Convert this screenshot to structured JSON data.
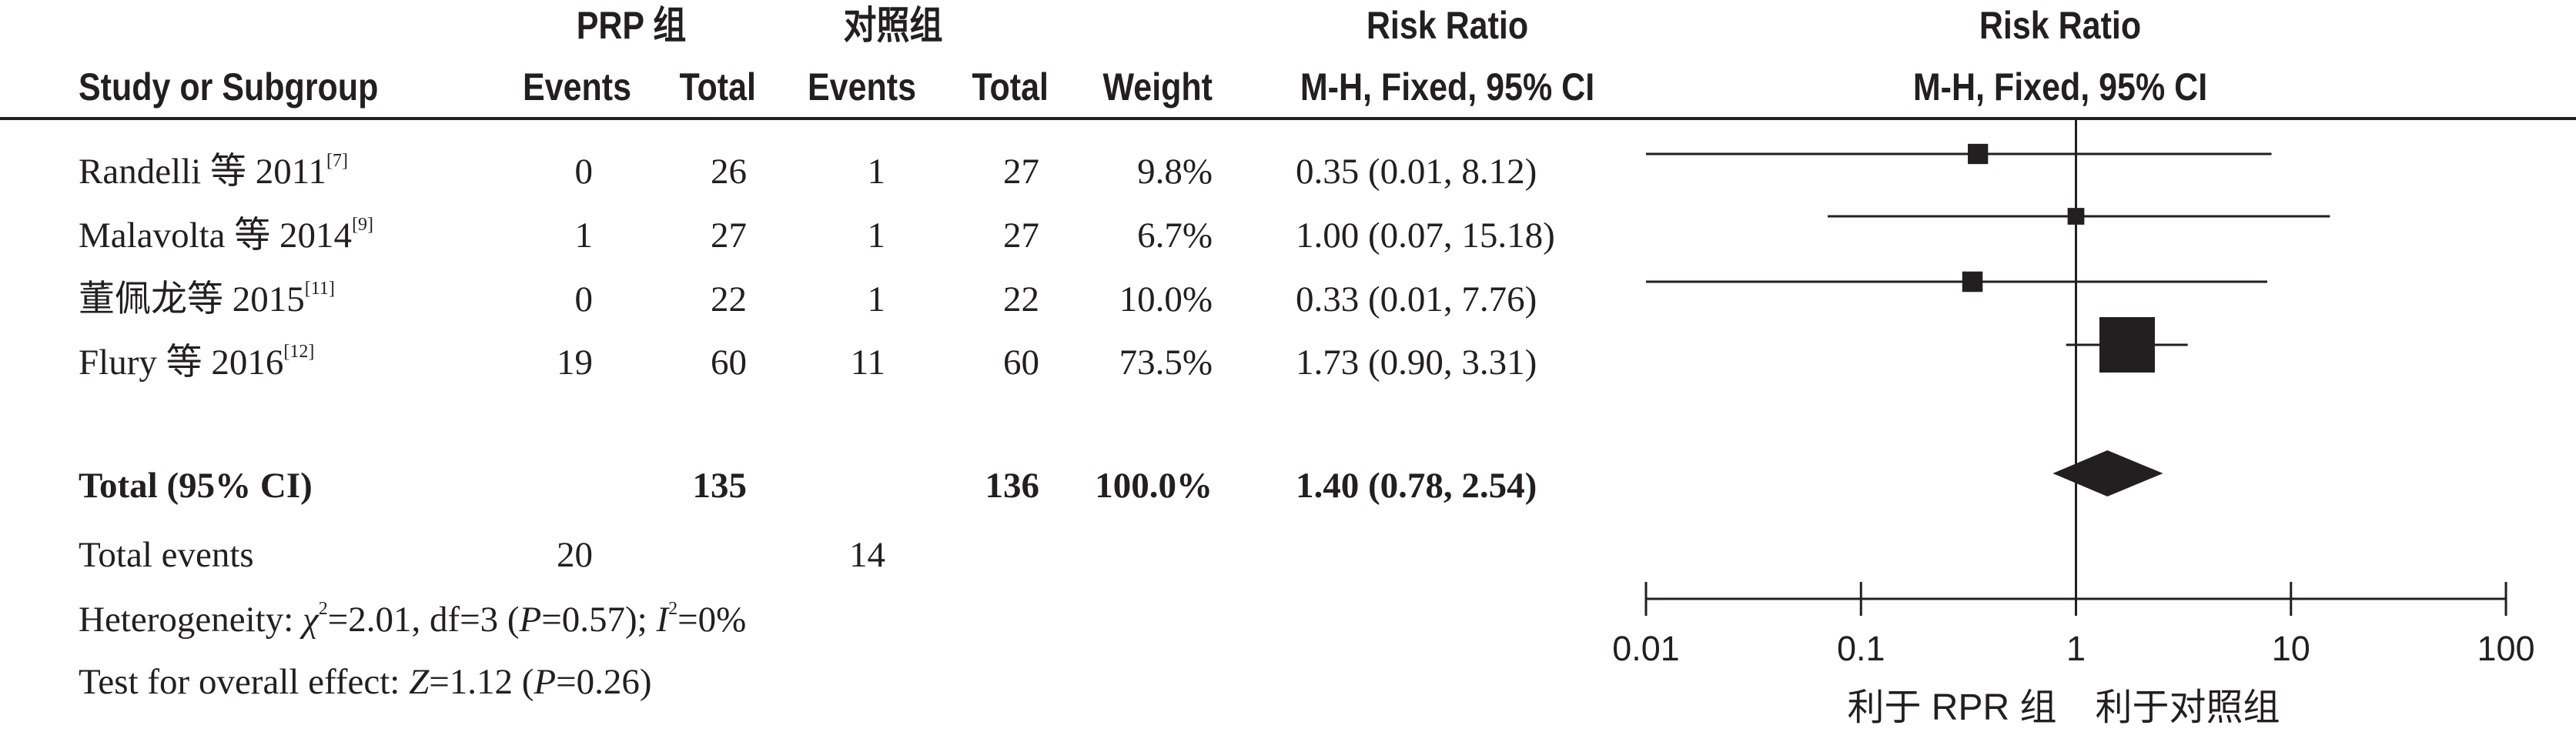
{
  "headers": {
    "group1": "PRP 组",
    "group2": "对照组",
    "rr_table": "Risk Ratio",
    "rr_plot": "Risk Ratio",
    "study": "Study or Subgroup",
    "events1": "Events",
    "total1": "Total",
    "events2": "Events",
    "total2": "Total",
    "weight": "Weight",
    "method_table": "M-H, Fixed, 95% CI",
    "method_plot": "M-H, Fixed, 95% CI"
  },
  "studies": [
    {
      "name": "Randelli 等 2011",
      "ref": "[7]",
      "e1": "0",
      "t1": "26",
      "e2": "1",
      "t2": "27",
      "weight": "9.8%",
      "ci": "0.35 (0.01, 8.12)"
    },
    {
      "name": "Malavolta 等 2014",
      "ref": "[9]",
      "e1": "1",
      "t1": "27",
      "e2": "1",
      "t2": "27",
      "weight": "6.7%",
      "ci": "1.00 (0.07, 15.18)"
    },
    {
      "name": "董佩龙等 2015",
      "ref": "[11]",
      "e1": "0",
      "t1": "22",
      "e2": "1",
      "t2": "22",
      "weight": "10.0%",
      "ci": "0.33 (0.01, 7.76)"
    },
    {
      "name": "Flury 等 2016",
      "ref": "[12]",
      "e1": "19",
      "t1": "60",
      "e2": "11",
      "t2": "60",
      "weight": "73.5%",
      "ci": "1.73 (0.90, 3.31)"
    }
  ],
  "total": {
    "label": "Total (95% CI)",
    "t1": "135",
    "t2": "136",
    "weight": "100.0%",
    "ci": "1.40 (0.78, 2.54)"
  },
  "total_events": {
    "label": "Total events",
    "e1": "20",
    "e2": "14"
  },
  "heterogeneity": {
    "prefix": "Heterogeneity: ",
    "chi": "χ",
    "chi_sup": "2",
    "chi_val": "=2.01, df=3 (",
    "p": "P",
    "p_val": "=0.57); ",
    "i": "I",
    "i_sup": "2",
    "i_val": "=0%"
  },
  "overall": {
    "prefix": "Test for overall effect: ",
    "z": "Z",
    "z_val": "=1.12 (",
    "p": "P",
    "p_val": "=0.26)"
  },
  "axis": {
    "ticks": [
      "0.01",
      "0.1",
      "1",
      "10",
      "100"
    ],
    "favours_left": "利于 RPR 组",
    "favours_right": "利于对照组"
  },
  "chart_data": {
    "type": "forest",
    "scale": "log",
    "xlim": [
      0.01,
      100
    ],
    "reference_line": 1,
    "points": [
      {
        "study": "Randelli 等 2011",
        "rr": 0.35,
        "lower": 0.01,
        "upper": 8.12,
        "weight": 9.8
      },
      {
        "study": "Malavolta 等 2014",
        "rr": 1.0,
        "lower": 0.07,
        "upper": 15.18,
        "weight": 6.7
      },
      {
        "study": "董佩龙等 2015",
        "rr": 0.33,
        "lower": 0.01,
        "upper": 7.76,
        "weight": 10.0
      },
      {
        "study": "Flury 等 2016",
        "rr": 1.73,
        "lower": 0.9,
        "upper": 3.31,
        "weight": 73.5
      }
    ],
    "pooled": {
      "rr": 1.4,
      "lower": 0.78,
      "upper": 2.54
    },
    "colors": {
      "ink": "#231f20"
    }
  }
}
